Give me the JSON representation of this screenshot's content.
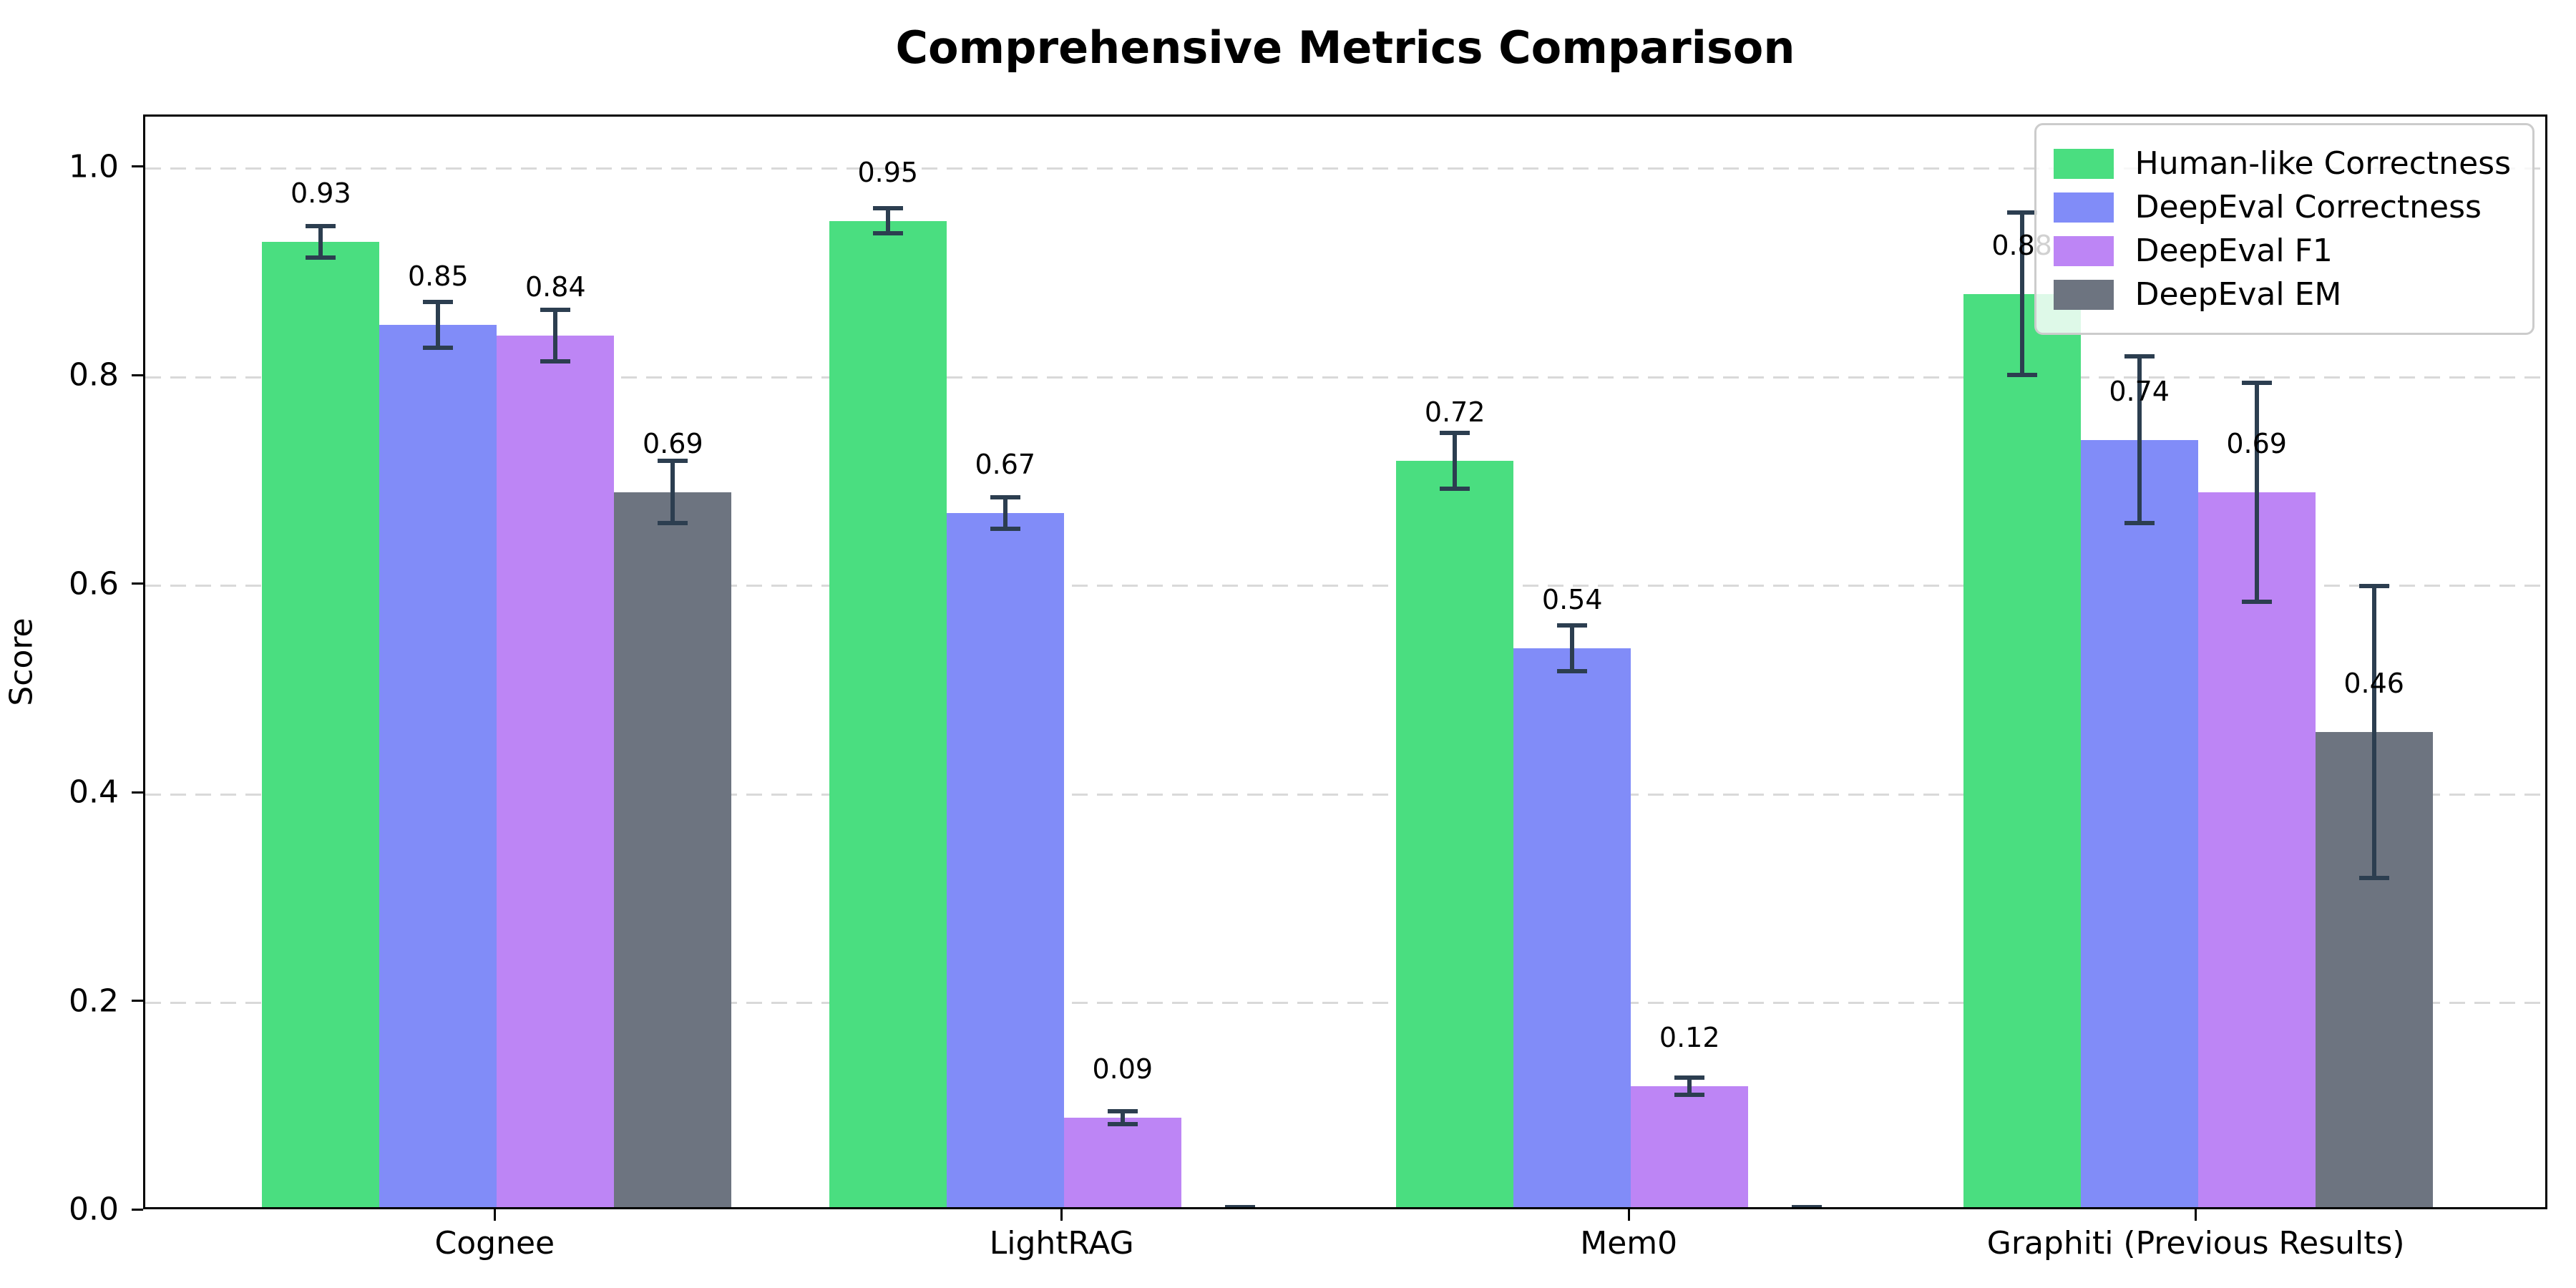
{
  "figure": {
    "background_color": "#ffffff"
  },
  "chart_data": {
    "type": "bar",
    "title": "Comprehensive Metrics Comparison",
    "xlabel": "",
    "ylabel": "Score",
    "ylim": [
      0,
      1.05
    ],
    "yticks": [
      0.0,
      0.2,
      0.4,
      0.6,
      0.8,
      1.0
    ],
    "ytick_labels": [
      "0.0",
      "0.2",
      "0.4",
      "0.6",
      "0.8",
      "1.0"
    ],
    "grid": "horizontal dashed gridlines at each y tick",
    "legend_position": "upper right",
    "categories": [
      "Cognee",
      "LightRAG",
      "Mem0",
      "Graphiti (Previous Results)"
    ],
    "series": [
      {
        "name": "Human-like Correctness",
        "color": "#4ade80",
        "values": [
          0.93,
          0.95,
          0.72,
          0.88
        ],
        "errors": [
          0.015,
          0.012,
          0.027,
          0.078
        ],
        "bar_labels": [
          "0.93",
          "0.95",
          "0.72",
          "0.88"
        ]
      },
      {
        "name": "DeepEval Correctness",
        "color": "#818cf8",
        "values": [
          0.85,
          0.67,
          0.54,
          0.74
        ],
        "errors": [
          0.022,
          0.015,
          0.022,
          0.08
        ],
        "bar_labels": [
          "0.85",
          "0.67",
          "0.54",
          "0.74"
        ]
      },
      {
        "name": "DeepEval F1",
        "color": "#bd85f5",
        "values": [
          0.84,
          0.09,
          0.12,
          0.69
        ],
        "errors": [
          0.025,
          0.006,
          0.008,
          0.105
        ],
        "bar_labels": [
          "0.84",
          "0.09",
          "0.12",
          "0.69"
        ]
      },
      {
        "name": "DeepEval EM",
        "color": "#6d7480",
        "values": [
          0.69,
          0.0,
          0.0,
          0.46
        ],
        "errors": [
          0.03,
          0.004,
          0.004,
          0.14
        ],
        "bar_labels": [
          "0.69",
          "",
          "",
          "0.46"
        ]
      }
    ],
    "colors": {
      "error_bar": "#2c3e50",
      "grid": "#d9d9d9",
      "axis": "#000000",
      "legend_border": "#cccccc",
      "background": "#ffffff"
    }
  }
}
